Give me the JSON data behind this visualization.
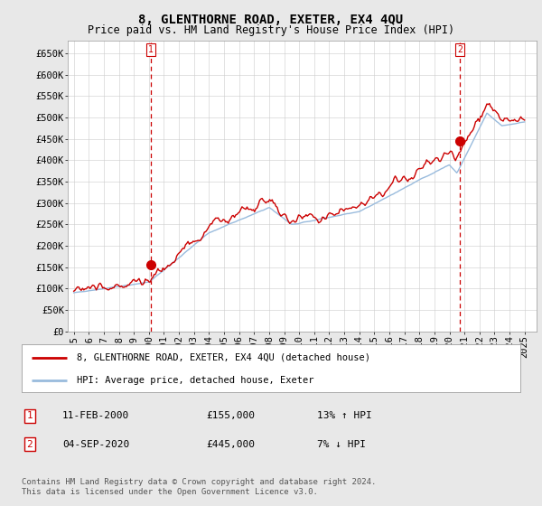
{
  "title": "8, GLENTHORNE ROAD, EXETER, EX4 4QU",
  "subtitle": "Price paid vs. HM Land Registry's House Price Index (HPI)",
  "ylabel_ticks": [
    "£0",
    "£50K",
    "£100K",
    "£150K",
    "£200K",
    "£250K",
    "£300K",
    "£350K",
    "£400K",
    "£450K",
    "£500K",
    "£550K",
    "£600K",
    "£650K"
  ],
  "ytick_values": [
    0,
    50000,
    100000,
    150000,
    200000,
    250000,
    300000,
    350000,
    400000,
    450000,
    500000,
    550000,
    600000,
    650000
  ],
  "ylim": [
    0,
    680000
  ],
  "xlim_start": 1994.6,
  "xlim_end": 2025.8,
  "background_color": "#e8e8e8",
  "plot_bg_color": "#ffffff",
  "grid_color": "#cccccc",
  "line1_color": "#cc0000",
  "line2_color": "#99bbdd",
  "marker_color": "#cc0000",
  "marker1_date": 2000.12,
  "marker1_value": 155000,
  "marker2_date": 2020.68,
  "marker2_value": 445000,
  "vline1_date": 2000.12,
  "vline2_date": 2020.68,
  "legend_label1": "8, GLENTHORNE ROAD, EXETER, EX4 4QU (detached house)",
  "legend_label2": "HPI: Average price, detached house, Exeter",
  "table_row1": [
    "1",
    "11-FEB-2000",
    "£155,000",
    "13% ↑ HPI"
  ],
  "table_row2": [
    "2",
    "04-SEP-2020",
    "£445,000",
    "7% ↓ HPI"
  ],
  "footnote": "Contains HM Land Registry data © Crown copyright and database right 2024.\nThis data is licensed under the Open Government Licence v3.0.",
  "title_fontsize": 10,
  "subtitle_fontsize": 8.5,
  "tick_fontsize": 7.5,
  "legend_fontsize": 7.5,
  "table_fontsize": 8,
  "footnote_fontsize": 6.5
}
